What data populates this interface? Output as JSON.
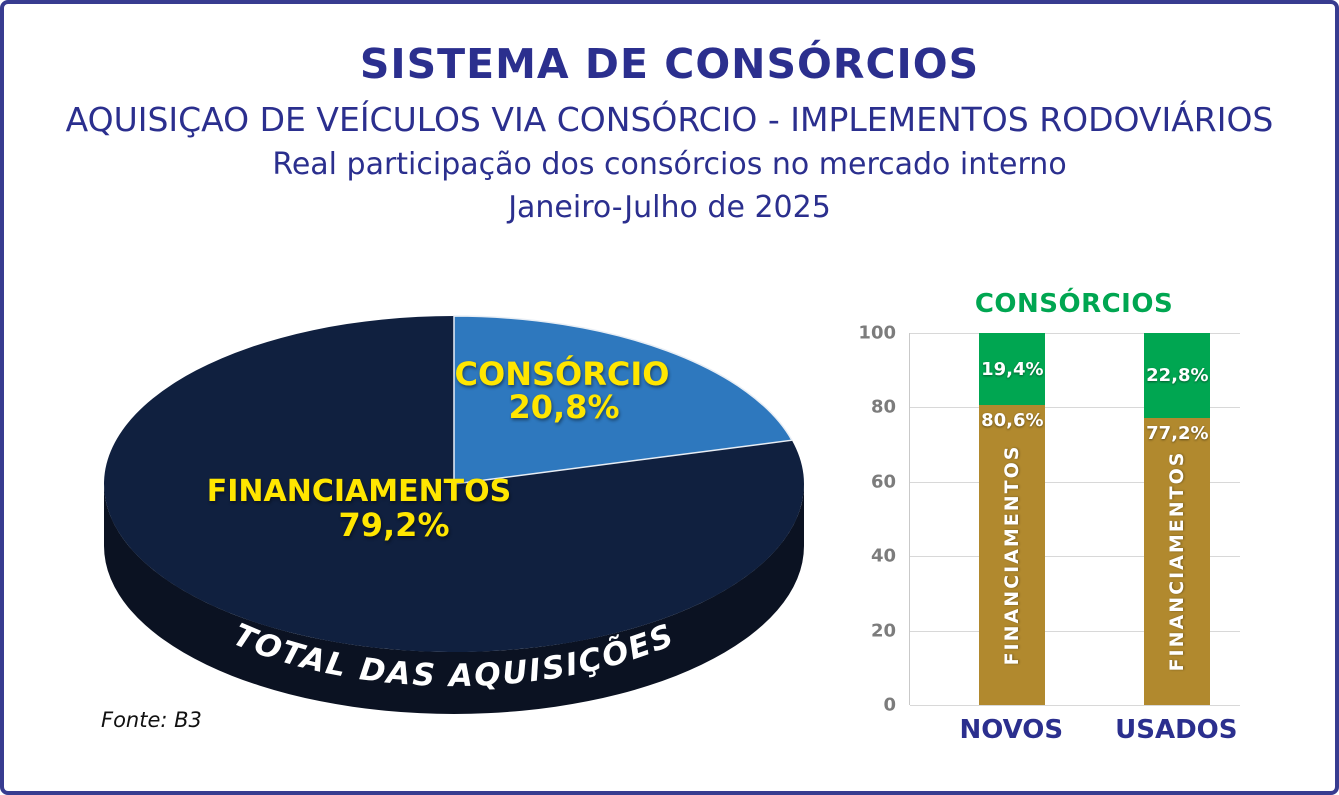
{
  "frame": {
    "border_color": "#383c90",
    "background": "#ffffff"
  },
  "header": {
    "title": "SISTEMA DE CONSÓRCIOS",
    "subtitle_line1": "AQUISIÇAO DE VEÍCULOS VIA CONSÓRCIO - IMPLEMENTOS RODOVIÁRIOS",
    "subtitle_line2": "Real participação dos consórcios no mercado interno",
    "subtitle_line3": "Janeiro-Julho de 2025",
    "text_color": "#2b2f8e"
  },
  "pie_panel": {
    "consorcio_label": "CONSÓRCIO",
    "consorcio_pct": "20,8%",
    "financiamentos_label": "FINANCIAMENTOS",
    "financiamentos_pct": "79,2%",
    "rim_label": "TOTAL DAS AQUISIÇÕES",
    "source": "Fonte: B3",
    "label_color": "#ffe600",
    "rim_color": "#0b1222"
  },
  "bar_panel": {
    "title": "CONSÓRCIOS",
    "title_color": "#00a651",
    "category_label_color": "#2b2f8e"
  },
  "chart_data": [
    {
      "type": "pie",
      "title": "TOTAL DAS AQUISIÇÕES",
      "period": "Janeiro-Julho de 2025",
      "slices": [
        {
          "label": "CONSÓRCIO",
          "value": 20.8,
          "display": "20,8%",
          "color": "#2e78be"
        },
        {
          "label": "FINANCIAMENTOS",
          "value": 79.2,
          "display": "79,2%",
          "color": "#10203f"
        }
      ]
    },
    {
      "type": "bar",
      "stacked": true,
      "title": "CONSÓRCIOS",
      "categories": [
        "NOVOS",
        "USADOS"
      ],
      "series": [
        {
          "name": "FINANCIAMENTOS",
          "values": [
            80.6,
            77.2
          ],
          "labels": [
            "80,6%",
            "77,2%"
          ],
          "color": "#b1892e"
        },
        {
          "name": "CONSÓRCIOS",
          "values": [
            19.4,
            22.8
          ],
          "labels": [
            "19,4%",
            "22,8%"
          ],
          "color": "#00a651"
        }
      ],
      "ylim": [
        0,
        100
      ],
      "yticks": [
        "0",
        "20",
        "40",
        "60",
        "80",
        "100"
      ],
      "grid": true,
      "legend_position": "none"
    }
  ]
}
